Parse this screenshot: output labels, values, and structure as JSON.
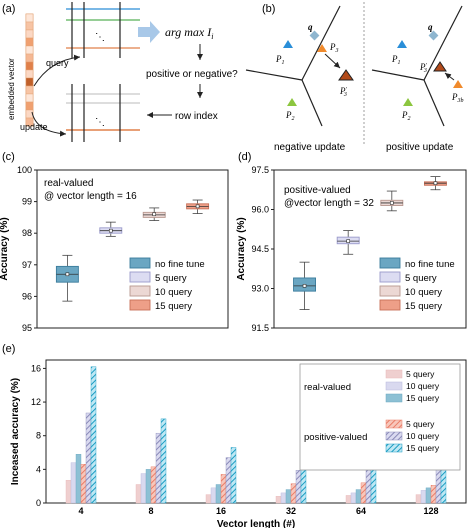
{
  "panels": {
    "a": {
      "label": "(a)",
      "vector_label": "embedded vector",
      "query_label": "query",
      "update_label": "update",
      "argmax_text": "arg max I",
      "argmax_sub": "i",
      "question_text": "positive or negative?",
      "row_index_text": "row index"
    },
    "b": {
      "label": "(b)",
      "q_label": "q",
      "p1": "P",
      "p2": "P",
      "p3": "P",
      "p3prime": "P",
      "p3pp": "P",
      "sub1": "1",
      "sub2": "2",
      "sub3": "3",
      "sub3b": "3b",
      "prime": "′",
      "left_caption": "negative update",
      "right_caption": "positive update"
    },
    "c": {
      "label": "(c)"
    },
    "d": {
      "label": "(d)"
    },
    "e": {
      "label": "(e)"
    }
  },
  "colors": {
    "no_fine_tune": "#6aa6c2",
    "q5_box": "#dcdcf2",
    "q10_box": "#ecd8d4",
    "q15_box": "#ee9f88",
    "p1_triangle": "#2a8ed8",
    "p2_triangle": "#8cc63f",
    "p3_triangle": "#f08a2c",
    "q_diamond": "#8fb6cf",
    "bar_real_5": "#efcfcf",
    "bar_real_10": "#d9d9ef",
    "bar_real_15": "#8cc0d4",
    "bar_pos_5": "#f29a88",
    "bar_pos_10": "#a8a8cc",
    "bar_pos_15": "#2aa6c8"
  },
  "chart_data": [
    {
      "panel": "c",
      "type": "box",
      "annotation_line1": "real-valued",
      "annotation_line2": "@ vector length = 16",
      "ylabel": "Accuracy (%)",
      "ylim": [
        95,
        100
      ],
      "yticks": [
        95,
        96,
        97,
        98,
        99,
        100
      ],
      "series": [
        {
          "name": "no fine tune",
          "q1": 96.45,
          "median": 96.7,
          "q3": 96.95,
          "whisker_low": 95.85,
          "whisker_high": 97.3,
          "mean": 96.7
        },
        {
          "name": "5 query",
          "q1": 98.0,
          "median": 98.08,
          "q3": 98.17,
          "whisker_low": 97.9,
          "whisker_high": 98.35,
          "mean": 98.08
        },
        {
          "name": "10 query",
          "q1": 98.5,
          "median": 98.58,
          "q3": 98.66,
          "whisker_low": 98.4,
          "whisker_high": 98.8,
          "mean": 98.6
        },
        {
          "name": "15 query",
          "q1": 98.77,
          "median": 98.85,
          "q3": 98.93,
          "whisker_low": 98.62,
          "whisker_high": 99.05,
          "mean": 98.85
        }
      ]
    },
    {
      "panel": "d",
      "type": "box",
      "annotation_line1": "positive-valued",
      "annotation_line2": "@vector length = 32",
      "ylabel": "Accuracy (%)",
      "ylim": [
        91.5,
        97.5
      ],
      "yticks": [
        91.5,
        93.0,
        94.5,
        96.0,
        97.5
      ],
      "ytick_labels": [
        "91.5",
        "93.0",
        "94.5",
        "96.0",
        "97.5"
      ],
      "series": [
        {
          "name": "no fine tune",
          "q1": 92.9,
          "median": 93.1,
          "q3": 93.4,
          "whisker_low": 92.2,
          "whisker_high": 94.0,
          "mean": 93.1
        },
        {
          "name": "5 query",
          "q1": 94.7,
          "median": 94.8,
          "q3": 94.95,
          "whisker_low": 94.3,
          "whisker_high": 95.2,
          "mean": 94.8
        },
        {
          "name": "10 query",
          "q1": 96.15,
          "median": 96.25,
          "q3": 96.35,
          "whisker_low": 95.95,
          "whisker_high": 96.7,
          "mean": 96.25
        },
        {
          "name": "15 query",
          "q1": 96.92,
          "median": 97.0,
          "q3": 97.05,
          "whisker_low": 96.75,
          "whisker_high": 97.25,
          "mean": 97.0
        }
      ]
    },
    {
      "panel": "e",
      "type": "bar",
      "xlabel": "Vector length (#)",
      "ylabel": "Inceased accuracy (%)",
      "ylim": [
        0,
        17
      ],
      "yticks": [
        0,
        4,
        8,
        12,
        16
      ],
      "categories": [
        "4",
        "8",
        "16",
        "32",
        "64",
        "128"
      ],
      "groups": [
        {
          "name": "real-valued",
          "series": [
            {
              "name": "5 query",
              "values": [
                2.7,
                2.2,
                1.0,
                0.8,
                0.9,
                1.0
              ]
            },
            {
              "name": "10 query",
              "values": [
                4.8,
                3.5,
                1.8,
                1.2,
                1.2,
                1.5
              ]
            },
            {
              "name": "15 query",
              "values": [
                5.8,
                4.0,
                2.2,
                1.6,
                1.6,
                1.8
              ]
            }
          ]
        },
        {
          "name": "positive-valued",
          "series": [
            {
              "name": "5 query",
              "values": [
                4.6,
                4.3,
                3.4,
                2.3,
                2.4,
                2.1
              ]
            },
            {
              "name": "10 query",
              "values": [
                10.7,
                8.3,
                5.4,
                3.9,
                3.9,
                4.5
              ]
            },
            {
              "name": "15 query",
              "values": [
                16.2,
                10.0,
                6.6,
                4.7,
                4.4,
                5.2
              ]
            }
          ]
        }
      ]
    }
  ]
}
